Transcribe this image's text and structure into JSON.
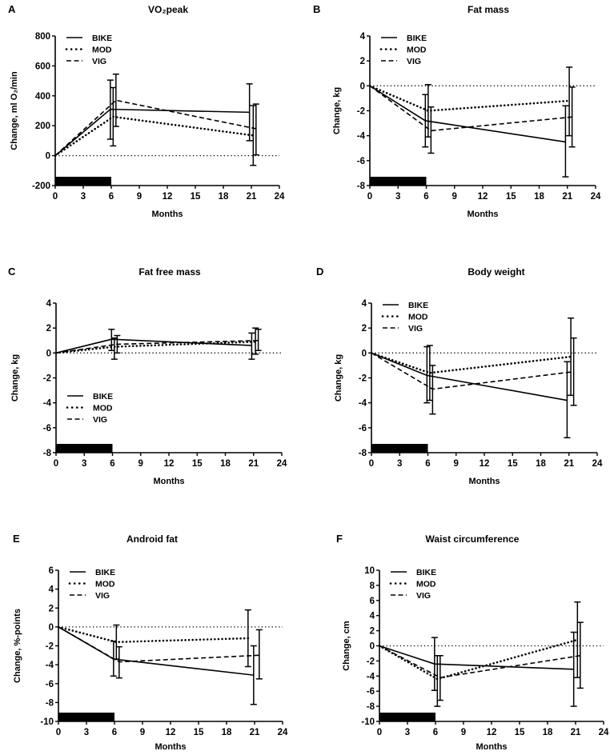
{
  "chart_data": [
    {
      "type": "line",
      "panel": "A",
      "title": "VO₂peak",
      "xlabel": "Months",
      "ylabel": "Change, ml O₂/min",
      "xlim": [
        0,
        24
      ],
      "xticks": [
        0,
        3,
        6,
        9,
        12,
        15,
        18,
        21,
        24
      ],
      "ylim": [
        -200,
        800
      ],
      "yticks": [
        -200,
        0,
        200,
        400,
        600,
        800
      ],
      "legend_position": "top-left",
      "intervention_bar_months": [
        0,
        6
      ],
      "series": [
        {
          "name": "BIKE",
          "style": "solid",
          "x": [
            0,
            5.9,
            20.8
          ],
          "y": [
            0,
            310,
            290
          ],
          "err_low": [
            null,
            110,
            100
          ],
          "err_high": [
            null,
            505,
            480
          ]
        },
        {
          "name": "MOD",
          "style": "dotted",
          "x": [
            0,
            6.2,
            21.2
          ],
          "y": [
            0,
            260,
            135
          ],
          "err_low": [
            null,
            65,
            -65
          ],
          "err_high": [
            null,
            455,
            335
          ]
        },
        {
          "name": "VIG",
          "style": "dashed",
          "x": [
            0,
            6.5,
            21.5
          ],
          "y": [
            0,
            370,
            180
          ],
          "err_low": [
            null,
            195,
            5
          ],
          "err_high": [
            null,
            545,
            345
          ]
        }
      ]
    },
    {
      "type": "line",
      "panel": "B",
      "title": "Fat mass",
      "xlabel": "Months",
      "ylabel": "Change, kg",
      "xlim": [
        0,
        24
      ],
      "xticks": [
        0,
        3,
        6,
        9,
        12,
        15,
        18,
        21,
        24
      ],
      "ylim": [
        -8,
        4
      ],
      "yticks": [
        -8,
        -6,
        -4,
        -2,
        0,
        2,
        4
      ],
      "legend_position": "top-left",
      "intervention_bar_months": [
        0,
        6
      ],
      "series": [
        {
          "name": "BIKE",
          "style": "solid",
          "x": [
            0,
            5.9,
            20.8
          ],
          "y": [
            0,
            -2.8,
            -4.5
          ],
          "err_low": [
            null,
            -4.9,
            -7.3
          ],
          "err_high": [
            null,
            -0.7,
            -1.6
          ]
        },
        {
          "name": "MOD",
          "style": "dotted",
          "x": [
            0,
            6.2,
            21.2
          ],
          "y": [
            0,
            -2.0,
            -1.2
          ],
          "err_low": [
            null,
            -4.1,
            -4.0
          ],
          "err_high": [
            null,
            0.1,
            1.5
          ]
        },
        {
          "name": "VIG",
          "style": "dashed",
          "x": [
            0,
            6.5,
            21.5
          ],
          "y": [
            0,
            -3.6,
            -2.5
          ],
          "err_low": [
            null,
            -5.4,
            -4.9
          ],
          "err_high": [
            null,
            -1.7,
            -0.1
          ]
        }
      ]
    },
    {
      "type": "line",
      "panel": "C",
      "title": "Fat free mass",
      "xlabel": "Months",
      "ylabel": "Change, kg",
      "xlim": [
        0,
        24
      ],
      "xticks": [
        0,
        3,
        6,
        9,
        12,
        15,
        18,
        21,
        24
      ],
      "ylim": [
        -8,
        4
      ],
      "yticks": [
        -8,
        -6,
        -4,
        -2,
        0,
        2,
        4
      ],
      "legend_position": "bottom-left",
      "intervention_bar_months": [
        0,
        6
      ],
      "series": [
        {
          "name": "BIKE",
          "style": "solid",
          "x": [
            0,
            5.9,
            20.8
          ],
          "y": [
            0,
            1.1,
            0.6
          ],
          "err_low": [
            null,
            0.2,
            -0.5
          ],
          "err_high": [
            null,
            1.9,
            1.6
          ]
        },
        {
          "name": "MOD",
          "style": "dotted",
          "x": [
            0,
            6.2,
            21.2
          ],
          "y": [
            0,
            0.5,
            0.9
          ],
          "err_low": [
            null,
            -0.5,
            -0.1
          ],
          "err_high": [
            null,
            1.2,
            2.0
          ]
        },
        {
          "name": "VIG",
          "style": "dashed",
          "x": [
            0,
            6.5,
            21.5
          ],
          "y": [
            0,
            0.7,
            1.0
          ],
          "err_low": [
            null,
            0.0,
            0.2
          ],
          "err_high": [
            null,
            1.4,
            1.9
          ]
        }
      ]
    },
    {
      "type": "line",
      "panel": "D",
      "title": "Body weight",
      "xlabel": "Months",
      "ylabel": "Change, kg",
      "xlim": [
        0,
        24
      ],
      "xticks": [
        0,
        3,
        6,
        9,
        12,
        15,
        18,
        21,
        24
      ],
      "ylim": [
        -8,
        4
      ],
      "yticks": [
        -8,
        -6,
        -4,
        -2,
        0,
        2,
        4
      ],
      "legend_position": "top-left",
      "intervention_bar_months": [
        0,
        6
      ],
      "series": [
        {
          "name": "BIKE",
          "style": "solid",
          "x": [
            0,
            5.9,
            20.8
          ],
          "y": [
            0,
            -1.8,
            -3.8
          ],
          "err_low": [
            null,
            -4.0,
            -6.8
          ],
          "err_high": [
            null,
            0.5,
            -0.7
          ]
        },
        {
          "name": "MOD",
          "style": "dotted",
          "x": [
            0,
            6.2,
            21.2
          ],
          "y": [
            0,
            -1.6,
            -0.3
          ],
          "err_low": [
            null,
            -3.8,
            -3.4
          ],
          "err_high": [
            null,
            0.6,
            2.8
          ]
        },
        {
          "name": "VIG",
          "style": "dashed",
          "x": [
            0,
            6.5,
            21.5
          ],
          "y": [
            0,
            -2.9,
            -1.5
          ],
          "err_low": [
            null,
            -4.9,
            -4.2
          ],
          "err_high": [
            null,
            -1.0,
            1.2
          ]
        }
      ]
    },
    {
      "type": "line",
      "panel": "E",
      "title": "Android fat",
      "xlabel": "Months",
      "ylabel": "Change, %-points",
      "xlim": [
        0,
        24
      ],
      "xticks": [
        0,
        3,
        6,
        9,
        12,
        15,
        18,
        21,
        24
      ],
      "ylim": [
        -10,
        6
      ],
      "yticks": [
        -10,
        -8,
        -6,
        -4,
        -2,
        0,
        2,
        4,
        6
      ],
      "legend_position": "top-left",
      "intervention_bar_months": [
        0,
        6
      ],
      "series": [
        {
          "name": "BIKE",
          "style": "solid",
          "x": [
            0,
            5.9,
            20.9
          ],
          "y": [
            0,
            -3.4,
            -5.1
          ],
          "err_low": [
            null,
            -5.2,
            -8.2
          ],
          "err_high": [
            null,
            -1.5,
            -2.0
          ]
        },
        {
          "name": "MOD",
          "style": "dotted",
          "x": [
            0,
            6.2,
            20.3
          ],
          "y": [
            0,
            -1.6,
            -1.2
          ],
          "err_low": [
            null,
            -3.4,
            -4.2
          ],
          "err_high": [
            null,
            0.2,
            1.8
          ]
        },
        {
          "name": "VIG",
          "style": "dashed",
          "x": [
            0,
            6.5,
            21.5
          ],
          "y": [
            0,
            -3.7,
            -3.0
          ],
          "err_low": [
            null,
            -5.4,
            -5.5
          ],
          "err_high": [
            null,
            -2.1,
            -0.3
          ]
        }
      ]
    },
    {
      "type": "line",
      "panel": "F",
      "title": "Waist circumference",
      "xlabel": "Months",
      "ylabel": "Change, cm",
      "xlim": [
        0,
        24
      ],
      "xticks": [
        0,
        3,
        6,
        9,
        12,
        15,
        18,
        21,
        24
      ],
      "ylim": [
        -10,
        10
      ],
      "yticks": [
        -10,
        -8,
        -6,
        -4,
        -2,
        0,
        2,
        4,
        6,
        8,
        10
      ],
      "legend_position": "top-left",
      "intervention_bar_months": [
        0,
        6
      ],
      "series": [
        {
          "name": "BIKE",
          "style": "solid",
          "x": [
            0,
            5.9,
            20.8
          ],
          "y": [
            0,
            -2.4,
            -3.1
          ],
          "err_low": [
            null,
            -5.9,
            -8.0
          ],
          "err_high": [
            null,
            1.1,
            1.8
          ]
        },
        {
          "name": "MOD",
          "style": "dotted",
          "x": [
            0,
            6.2,
            21.2
          ],
          "y": [
            0,
            -4.4,
            0.8
          ],
          "err_low": [
            null,
            -8.0,
            -4.2
          ],
          "err_high": [
            null,
            -1.3,
            5.8
          ]
        },
        {
          "name": "VIG",
          "style": "dashed",
          "x": [
            0,
            6.5,
            21.5
          ],
          "y": [
            0,
            -4.2,
            -1.3
          ],
          "err_low": [
            null,
            -7.2,
            -5.6
          ],
          "err_high": [
            null,
            -1.3,
            3.1
          ]
        }
      ]
    }
  ]
}
